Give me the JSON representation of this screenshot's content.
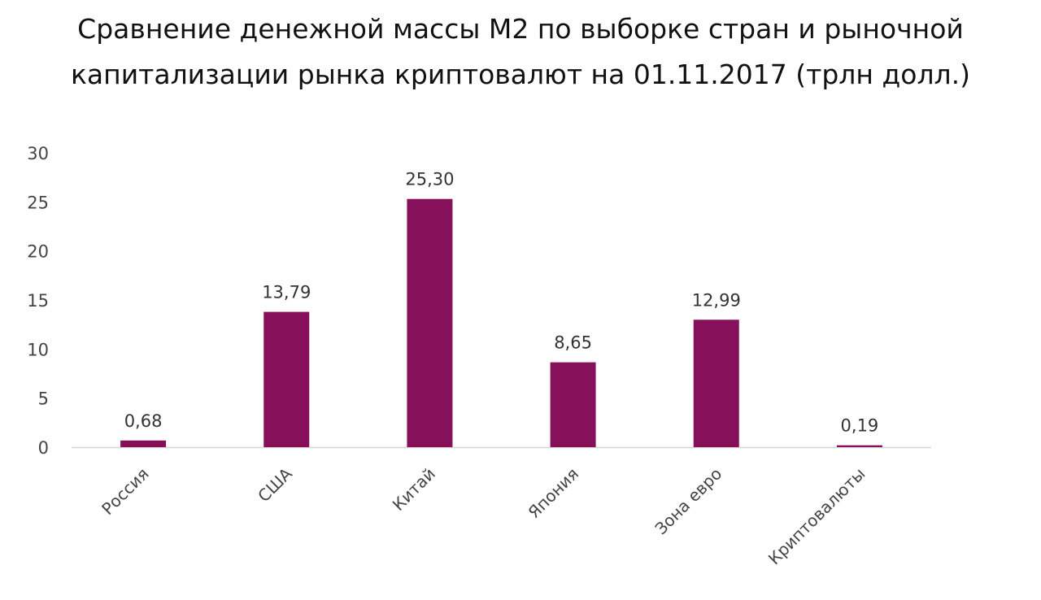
{
  "chart_data": {
    "type": "bar",
    "title_lines": [
      "Сравнение денежной массы М2 по выборке стран и рыночной",
      "капитализации рынка криптовалют на 01.11.2017 (трлн долл.)"
    ],
    "categories": [
      "Россия",
      "США",
      "Китай",
      "Япония",
      "Зона евро",
      "Криптовалюты"
    ],
    "values": [
      0.68,
      13.79,
      25.3,
      8.65,
      12.99,
      0.19
    ],
    "data_labels": [
      "0,68",
      "13,79",
      "25,30",
      "8,65",
      "12,99",
      "0,19"
    ],
    "y_ticks": [
      0,
      5,
      10,
      15,
      20,
      25,
      30
    ],
    "ylim": [
      0,
      30
    ],
    "grid": false,
    "legend": "none",
    "bar_color": "#86105a",
    "axis_color": "#d4d4d4"
  }
}
